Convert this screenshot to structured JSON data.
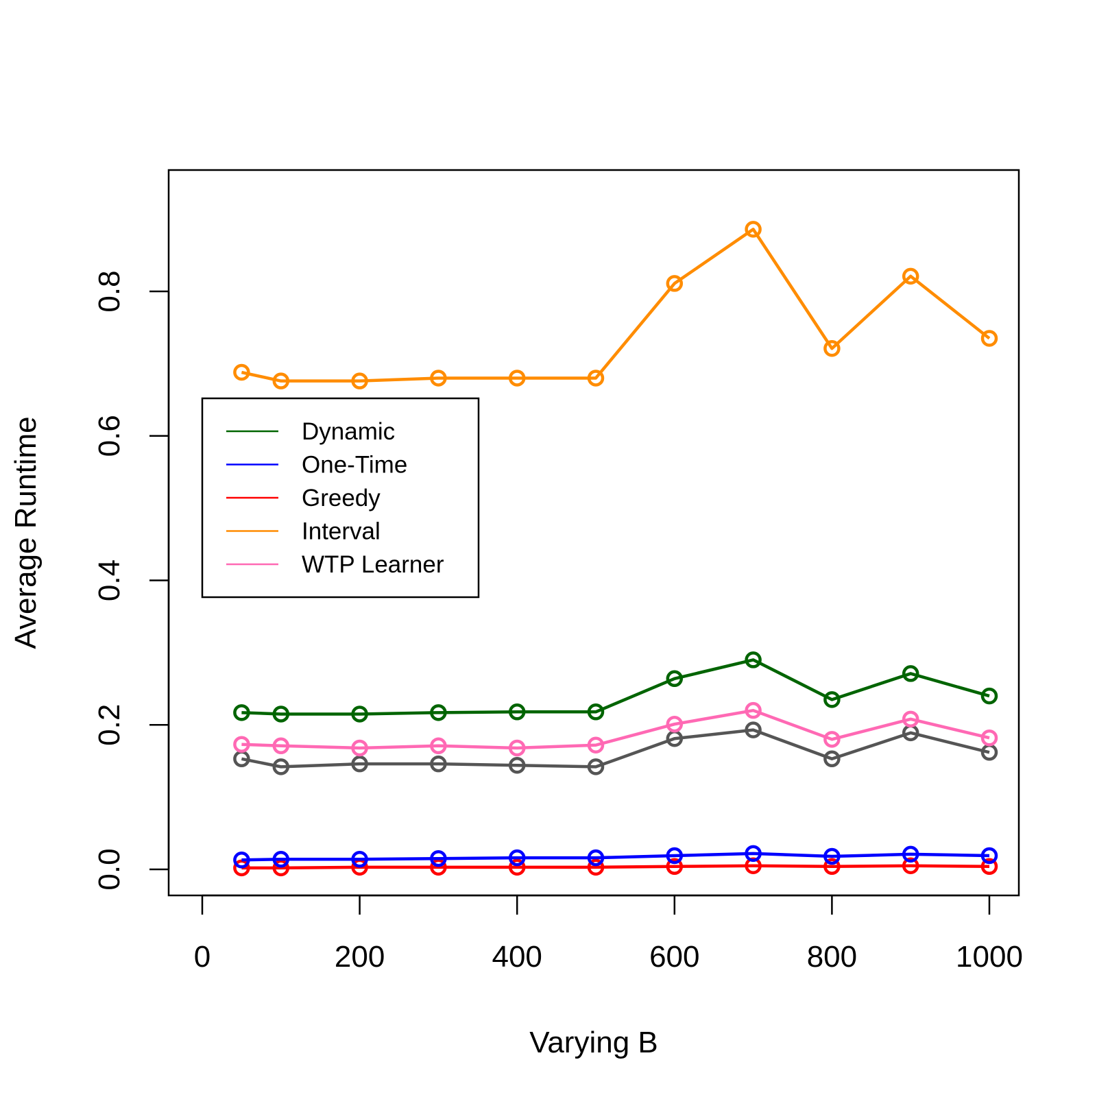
{
  "chart_data": {
    "type": "line",
    "title": "",
    "xlabel": "Varying B",
    "ylabel": "Average Runtime",
    "xlim": [
      0,
      1000
    ],
    "ylim": [
      0.0,
      0.9
    ],
    "xticks": [
      "0",
      "200",
      "400",
      "600",
      "800",
      "1000"
    ],
    "yticks": [
      "0.0",
      "0.2",
      "0.4",
      "0.6",
      "0.8"
    ],
    "grid": false,
    "legend_position": "left",
    "x": [
      50,
      100,
      200,
      300,
      400,
      500,
      600,
      700,
      800,
      900,
      1000
    ],
    "series": [
      {
        "name": "Dynamic",
        "color": "#006400",
        "in_legend": true,
        "values": [
          0.217,
          0.215,
          0.215,
          0.217,
          0.218,
          0.218,
          0.264,
          0.29,
          0.235,
          0.271,
          0.24
        ]
      },
      {
        "name": "One-Time",
        "color": "#0000ff",
        "in_legend": true,
        "values": [
          0.013,
          0.014,
          0.014,
          0.015,
          0.016,
          0.016,
          0.019,
          0.022,
          0.018,
          0.021,
          0.019
        ]
      },
      {
        "name": "Greedy",
        "color": "#ff0000",
        "in_legend": true,
        "values": [
          0.002,
          0.002,
          0.003,
          0.003,
          0.003,
          0.003,
          0.004,
          0.005,
          0.004,
          0.005,
          0.004
        ]
      },
      {
        "name": "Interval",
        "color": "#ff8c00",
        "in_legend": true,
        "values": [
          0.688,
          0.676,
          0.676,
          0.68,
          0.68,
          0.68,
          0.811,
          0.886,
          0.721,
          0.821,
          0.735
        ]
      },
      {
        "name": "WTP Learner",
        "color": "#ff69b4",
        "in_legend": true,
        "values": [
          0.173,
          0.171,
          0.168,
          0.171,
          0.168,
          0.172,
          0.201,
          0.22,
          0.18,
          0.208,
          0.182
        ]
      },
      {
        "name": "",
        "color": "#555555",
        "in_legend": false,
        "values": [
          0.153,
          0.142,
          0.146,
          0.146,
          0.144,
          0.142,
          0.181,
          0.193,
          0.153,
          0.189,
          0.162
        ]
      }
    ]
  }
}
